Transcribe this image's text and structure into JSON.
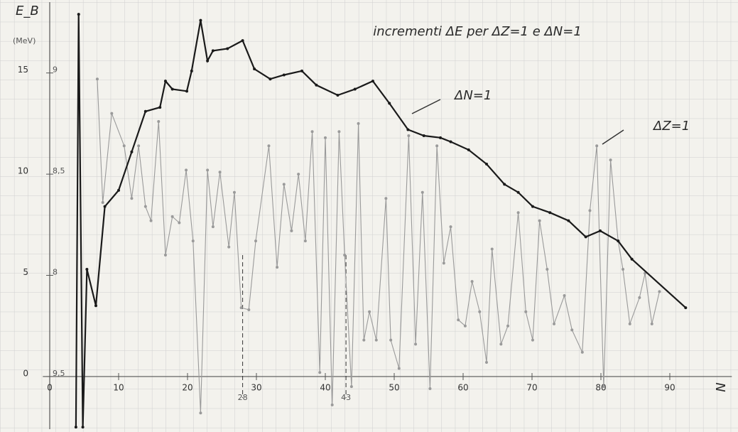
{
  "chart_data": {
    "type": "line",
    "title": "incrementi ΔE per ΔZ=1 e ΔN=1",
    "y_label": "E_B",
    "y_unit": "(MeV)",
    "x_label": "N",
    "xlim": [
      -1,
      99
    ],
    "ylim": [
      -2.6,
      18.5
    ],
    "xticks": [
      0,
      10,
      20,
      30,
      40,
      50,
      60,
      70,
      80,
      90
    ],
    "yticks": [
      0,
      5,
      10,
      15
    ],
    "side_labels": [
      {
        "value": 15,
        "label": "9"
      },
      {
        "value": 10,
        "label": "8,5"
      },
      {
        "value": 5,
        "label": "8"
      },
      {
        "value": 0,
        "label": "9,5"
      }
    ],
    "x_markers": [
      {
        "value": 28,
        "label": "28"
      },
      {
        "value": 43,
        "label": "43"
      }
    ],
    "series": [
      {
        "name": "ΔN=1",
        "color": "#1a1a1a",
        "x": [
          3.8,
          4.2,
          4.8,
          5.4,
          6.7,
          8,
          10,
          11.9,
          13.9,
          16,
          16.8,
          17.8,
          19.9,
          20.6,
          21.9,
          22.9,
          23.7,
          25.8,
          28,
          29.7,
          32,
          34,
          36.6,
          38.7,
          41.8,
          44.3,
          46.9,
          49.3,
          52,
          54.3,
          56.7,
          58.2,
          60.8,
          63.4,
          66,
          68,
          70.1,
          72.6,
          75.3,
          77.8,
          79.9,
          82.5,
          84.5,
          92.3
        ],
        "values": [
          -2.5,
          17.9,
          -2.5,
          5.3,
          3.5,
          8.4,
          9.2,
          11.1,
          13.1,
          13.3,
          14.6,
          14.2,
          14.1,
          15.1,
          17.6,
          15.6,
          16.1,
          16.2,
          16.6,
          15.2,
          14.7,
          14.9,
          15.1,
          14.4,
          13.9,
          14.2,
          14.6,
          13.5,
          12.2,
          11.9,
          11.8,
          11.6,
          11.2,
          10.5,
          9.5,
          9.1,
          8.4,
          8.1,
          7.7,
          6.9,
          7.2,
          6.7,
          5.8,
          3.4
        ]
      },
      {
        "name": "ΔZ=1",
        "color": "#9a9a9a",
        "x": [
          6.9,
          7.7,
          9.0,
          10.8,
          11.9,
          12.9,
          13.9,
          14.7,
          15.8,
          16.8,
          17.8,
          18.8,
          19.8,
          20.8,
          21.9,
          22.9,
          23.7,
          24.7,
          26.0,
          26.8,
          27.8,
          28.9,
          29.9,
          31.8,
          33.0,
          34.0,
          35.1,
          36.1,
          37.1,
          38.1,
          39.2,
          40.0,
          41.0,
          42.0,
          42.8,
          43.8,
          44.8,
          45.6,
          46.4,
          47.4,
          48.8,
          49.5,
          50.7,
          52.1,
          53.1,
          54.1,
          55.2,
          56.2,
          57.2,
          58.2,
          59.3,
          60.3,
          61.3,
          62.4,
          63.4,
          64.2,
          65.5,
          66.5,
          68.0,
          69.1,
          70.1,
          71.1,
          72.2,
          73.2,
          74.7,
          75.8,
          77.3,
          78.4,
          79.4,
          80.4,
          81.4,
          82.5,
          83.2,
          84.2,
          85.6,
          86.4,
          87.4,
          88.5
        ],
        "values": [
          14.7,
          8.6,
          13.0,
          11.4,
          8.8,
          11.4,
          8.4,
          7.7,
          12.6,
          6.0,
          7.9,
          7.6,
          10.2,
          6.7,
          -1.8,
          10.2,
          7.4,
          10.1,
          6.4,
          9.1,
          3.4,
          3.3,
          6.7,
          11.4,
          5.4,
          9.5,
          7.2,
          10.0,
          6.7,
          12.1,
          0.2,
          11.8,
          -1.4,
          12.1,
          6.0,
          -0.5,
          12.5,
          1.8,
          3.2,
          1.8,
          8.8,
          1.8,
          0.4,
          11.9,
          1.6,
          9.1,
          -0.6,
          11.4,
          5.6,
          7.4,
          2.8,
          2.5,
          4.7,
          3.2,
          0.7,
          6.3,
          1.6,
          2.5,
          8.1,
          3.2,
          1.8,
          7.7,
          5.3,
          2.6,
          4.0,
          2.3,
          1.2,
          8.2,
          11.4,
          -0.5,
          10.7,
          6.7,
          5.3,
          2.6,
          3.9,
          5.1,
          2.6,
          4.2
        ]
      }
    ]
  }
}
